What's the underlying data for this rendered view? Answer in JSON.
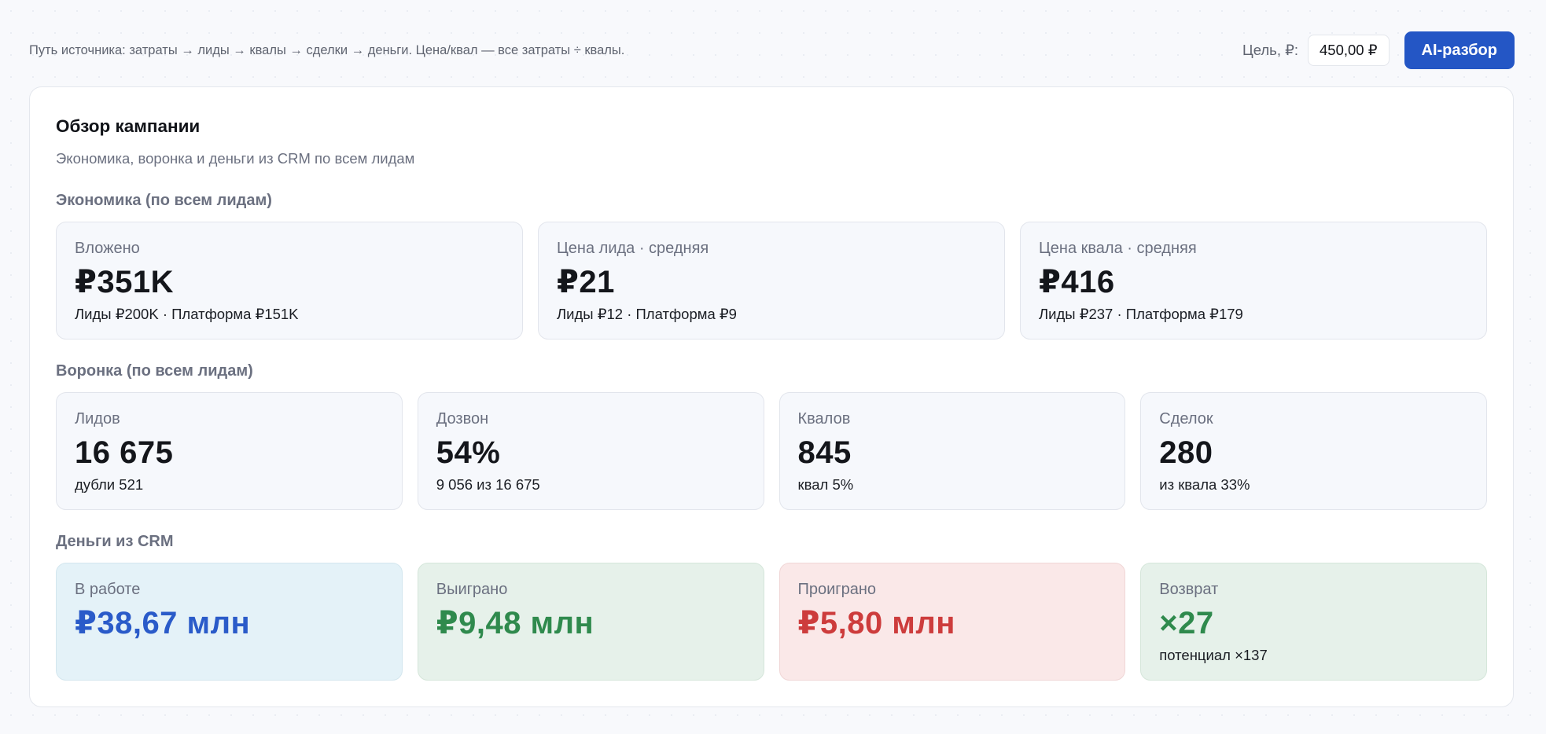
{
  "topbar": {
    "path_hint": "Путь источника: затраты → лиды → квалы → сделки → деньги. Цена/квал — все затраты ÷ квалы.",
    "goal_label": "Цель, ₽:",
    "goal_value": "450,00 ₽",
    "ai_button": "AI-разбор"
  },
  "panel": {
    "title": "Обзор кампании",
    "subtitle": "Экономика, воронка и деньги из CRM по всем лидам"
  },
  "economics": {
    "title": "Экономика (по всем лидам)",
    "cards": [
      {
        "label": "Вложено",
        "value": "₽351K",
        "sub": "Лиды ₽200K · Платформа ₽151K"
      },
      {
        "label": "Цена лида · средняя",
        "value": "₽21",
        "sub": "Лиды ₽12 · Платформа ₽9"
      },
      {
        "label": "Цена квала · средняя",
        "value": "₽416",
        "sub": "Лиды ₽237 · Платформа ₽179"
      }
    ]
  },
  "funnel": {
    "title": "Воронка (по всем лидам)",
    "cards": [
      {
        "label": "Лидов",
        "value": "16 675",
        "sub": "дубли 521"
      },
      {
        "label": "Дозвон",
        "value": "54%",
        "sub": "9 056 из 16 675"
      },
      {
        "label": "Квалов",
        "value": "845",
        "sub": "квал 5%"
      },
      {
        "label": "Сделок",
        "value": "280",
        "sub": "из квала 33%"
      }
    ]
  },
  "money": {
    "title": "Деньги из CRM",
    "cards": [
      {
        "label": "В работе",
        "value": "₽38,67 млн",
        "sub": ""
      },
      {
        "label": "Выиграно",
        "value": "₽9,48 млн",
        "sub": ""
      },
      {
        "label": "Проиграно",
        "value": "₽5,80 млн",
        "sub": ""
      },
      {
        "label": "Возврат",
        "value": "×27",
        "sub": "потенциал ×137"
      }
    ]
  },
  "colors": {
    "accent": "#2456c5",
    "in_work": "#2a5bc9",
    "won": "#2f8a4d",
    "lost": "#cd3c3c"
  }
}
